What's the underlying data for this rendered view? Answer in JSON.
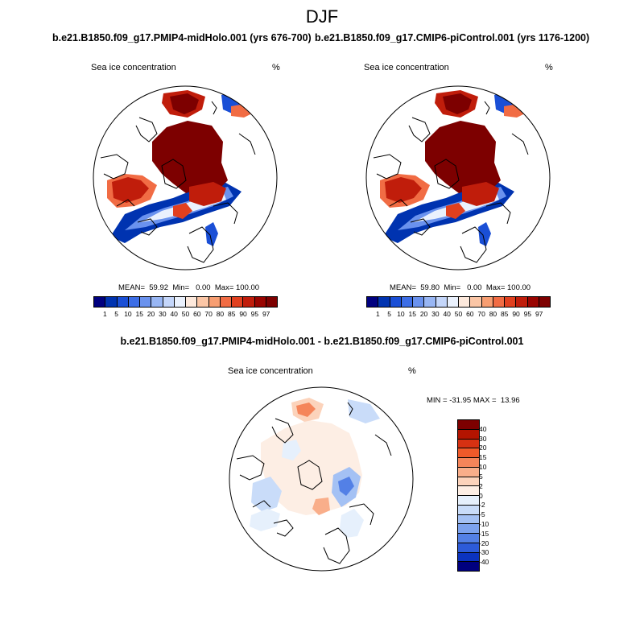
{
  "figure": {
    "season": "DJF",
    "case1_title": "b.e21.B1850.f09_g17.PMIP4-midHolo.001 (yrs 676-700)",
    "case2_title": "b.e21.B1850.f09_g17.CMIP6-piControl.001 (yrs 1176-1200)",
    "diff_title": "b.e21.B1850.f09_g17.PMIP4-midHolo.001 - b.e21.B1850.f09_g17.CMIP6-piControl.001"
  },
  "panels": [
    {
      "id": "case1",
      "variable_label": "Sea ice concentration",
      "units": "%",
      "stats": "MEAN=  59.92  Min=   0.00  Max= 100.00"
    },
    {
      "id": "case2",
      "variable_label": "Sea ice concentration",
      "units": "%",
      "stats": "MEAN=  59.80  Min=   0.00  Max= 100.00"
    },
    {
      "id": "diff",
      "variable_label": "Sea ice concentration",
      "units": "%",
      "stats": "MIN = -31.95 MAX =  13.96"
    }
  ],
  "abs_colorbar": {
    "labels": [
      "1",
      "5",
      "10",
      "15",
      "20",
      "30",
      "40",
      "50",
      "60",
      "70",
      "80",
      "85",
      "90",
      "95",
      "97"
    ],
    "colors": [
      "#00007f",
      "#0033b0",
      "#1a4fd6",
      "#3d6ee6",
      "#6a92ee",
      "#98b6f4",
      "#c4d6fa",
      "#eaf1fd",
      "#fde9dc",
      "#fbc6a6",
      "#f79e72",
      "#f16c44",
      "#e1401f",
      "#c01d0b",
      "#990400",
      "#7d0000"
    ]
  },
  "diff_colorbar": {
    "labels": [
      "40",
      "30",
      "20",
      "15",
      "10",
      "5",
      "2",
      "0",
      "-2",
      "-5",
      "-10",
      "-15",
      "-20",
      "-30",
      "-40"
    ],
    "colors": [
      "#7d0000",
      "#b31400",
      "#d63112",
      "#ef5a2a",
      "#f5855a",
      "#f9ae8a",
      "#fcd3bb",
      "#fdeee4",
      "#e6f0fc",
      "#c9dcf9",
      "#a4c1f4",
      "#7ca2ee",
      "#5380e6",
      "#2d5bd9",
      "#0b33bf",
      "#00007f"
    ]
  },
  "map_colors": {
    "ice_core": "#7d0000",
    "ocean": "#ffffff",
    "coast": "#000000"
  }
}
